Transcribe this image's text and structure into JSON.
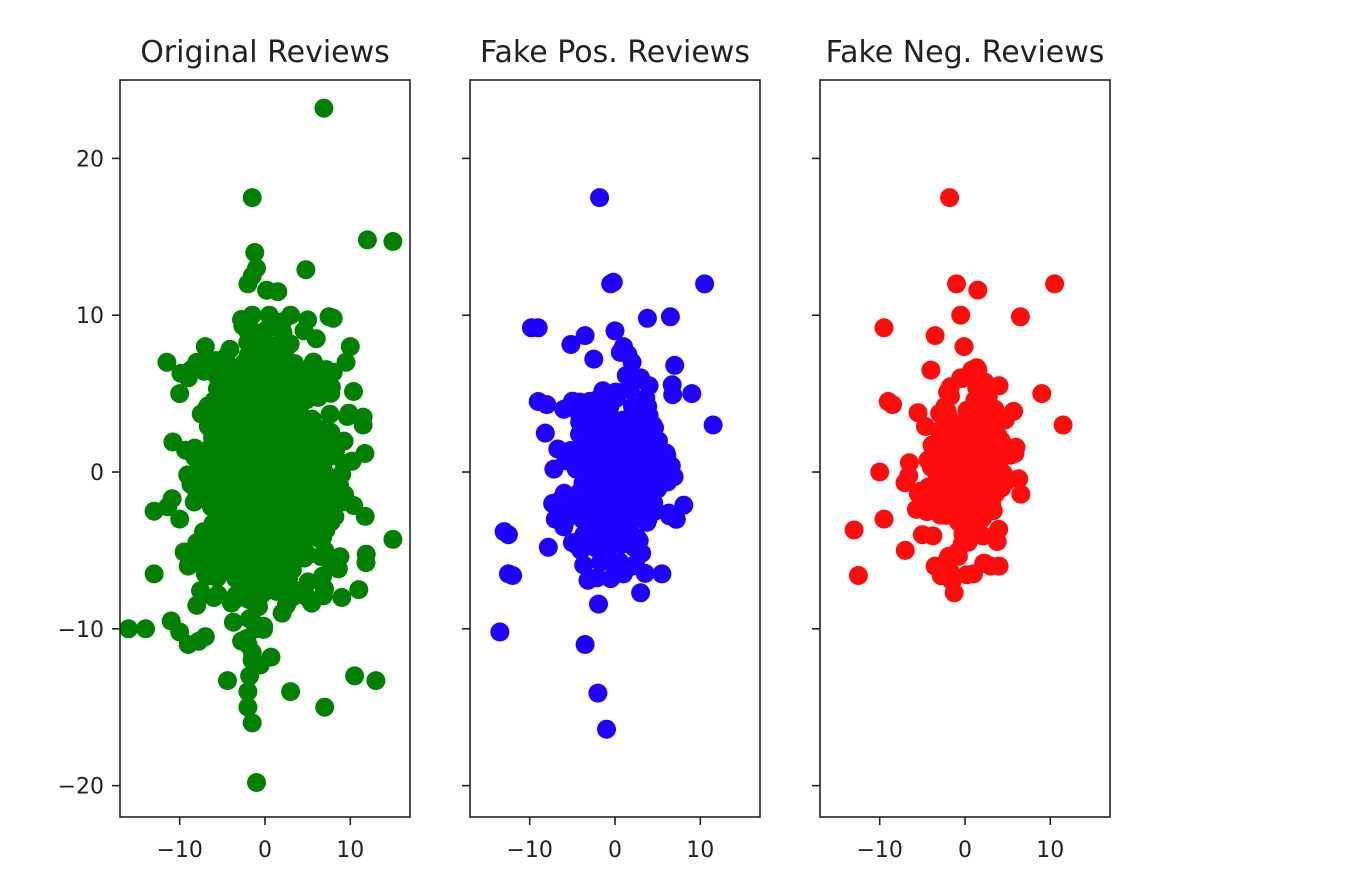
{
  "chart_data": [
    {
      "type": "scatter",
      "title": "Original Reviews",
      "color": "#008000",
      "xlim": [
        -17,
        17
      ],
      "ylim": [
        -22,
        25
      ],
      "xticks": [
        -10,
        0,
        10
      ],
      "xtick_labels": [
        "−10",
        "0",
        "10"
      ],
      "yticks": [
        -20,
        -10,
        0,
        10,
        20
      ],
      "ytick_labels": [
        "−20",
        "−10",
        "0",
        "10",
        "20"
      ],
      "show_y_tick_labels": true,
      "grid": false,
      "x": [
        6.9,
        -1.5,
        -1.2,
        12,
        15,
        -1,
        -1.5,
        1.5,
        -2,
        4.8,
        -1,
        3,
        -4.4,
        7,
        10.5,
        -9,
        -7.8,
        -1.5,
        -1.5,
        0.7,
        -7,
        -10,
        -11,
        -8,
        -6,
        -13,
        -16,
        -14,
        -13,
        -9,
        -10,
        -8,
        -7,
        -6,
        -5,
        -3,
        -10,
        -9,
        -8,
        -7,
        -11.5,
        15,
        13,
        11,
        9,
        -2,
        -1.5,
        -2,
        -1.8,
        -1.5,
        -2,
        -1,
        -1.5,
        2,
        2.5,
        4.5,
        5,
        -1.5,
        0.5,
        3,
        5,
        7.5,
        8,
        10,
        11.5,
        11.5,
        9.5,
        6,
        -2.5,
        -1,
        -0.5,
        2,
        3.5,
        -4.5,
        -3,
        4,
        0.5,
        -3.5,
        -5,
        -1,
        -1,
        -1,
        -2,
        -2,
        -1,
        -1,
        -2,
        -2,
        -1.5,
        -0.5,
        -2,
        3,
        7
      ],
      "y": [
        23.2,
        17.5,
        14,
        14.8,
        14.7,
        13,
        12.5,
        11.5,
        12,
        12.9,
        -19.8,
        -14,
        -13.3,
        -15,
        -13,
        -11,
        -10.8,
        -11.5,
        -12,
        -11.8,
        -10.5,
        -10.2,
        -9.5,
        -8.5,
        -8,
        -6.5,
        -10,
        -10,
        -2.5,
        -6,
        -3,
        -4.5,
        -6.5,
        -2,
        -3,
        -7,
        5,
        6,
        7,
        8,
        7,
        -4.3,
        -13.3,
        -7.5,
        -8,
        -15,
        -16,
        -14,
        -13,
        -12,
        -11,
        -10,
        -9.5,
        -9,
        -8.5,
        -7.5,
        -8,
        10,
        10,
        10,
        9.7,
        9.9,
        9.8,
        8,
        3.5,
        3,
        7,
        8.5,
        -4,
        -3,
        -2,
        -1,
        1,
        1,
        3,
        3,
        5,
        2,
        0,
        4,
        6,
        -6,
        -5,
        -2,
        2,
        0,
        -1,
        1,
        -3,
        3,
        5,
        -5,
        -5
      ],
      "cloud": {
        "cx": 0,
        "cy": 0,
        "sx": 3.8,
        "sy": 3.8,
        "n": 1100,
        "seed": 7
      }
    },
    {
      "type": "scatter",
      "title": "Fake Pos. Reviews",
      "color": "#1f00ff",
      "xlim": [
        -17,
        17
      ],
      "ylim": [
        -22,
        25
      ],
      "xticks": [
        -10,
        0,
        10
      ],
      "xtick_labels": [
        "−10",
        "0",
        "10"
      ],
      "yticks": [
        -20,
        -10,
        0,
        10,
        20
      ],
      "ytick_labels": [
        "−20",
        "−10",
        "0",
        "10",
        "20"
      ],
      "show_y_tick_labels": false,
      "grid": false,
      "x": [
        -1.8,
        -0.5,
        -0.2,
        10.5,
        6.5,
        3.8,
        -9.8,
        -9,
        -3.5,
        0,
        1,
        1.5,
        2,
        3,
        4,
        7,
        9,
        11.5,
        6,
        4,
        -9,
        -8,
        -6,
        -3,
        -2,
        -13,
        -12.5,
        -12,
        -12.5,
        -13.5,
        -3.5,
        -2,
        -1,
        3,
        5.5,
        2,
        1,
        -0.5,
        0.5,
        -1.5,
        -4,
        -5,
        -6,
        -7
      ],
      "y": [
        17.5,
        12,
        12.1,
        12,
        9.9,
        9.8,
        9.2,
        9.2,
        8.7,
        9,
        8,
        7.5,
        7,
        6,
        5.5,
        6.8,
        5,
        3,
        1.2,
        3.6,
        4.5,
        4.3,
        4,
        4.5,
        3.7,
        -3.8,
        -4,
        -6.6,
        -6.5,
        -10.2,
        -11,
        -14.1,
        -16.4,
        -7.7,
        -6.5,
        -6,
        -6.5,
        -6.8,
        -5.8,
        -5.5,
        -5,
        -4.5,
        -3.5,
        -3
      ],
      "cloud": {
        "cx": 0,
        "cy": 0,
        "sx": 2.9,
        "sy": 2.8,
        "n": 380,
        "seed": 11
      }
    },
    {
      "type": "scatter",
      "title": "Fake Neg. Reviews",
      "color": "#ff0d0d",
      "xlim": [
        -17,
        17
      ],
      "ylim": [
        -22,
        25
      ],
      "xticks": [
        -10,
        0,
        10
      ],
      "xtick_labels": [
        "−10",
        "0",
        "10"
      ],
      "yticks": [
        -20,
        -10,
        0,
        10,
        20
      ],
      "ytick_labels": [
        "−20",
        "−10",
        "0",
        "10",
        "20"
      ],
      "show_y_tick_labels": false,
      "grid": false,
      "x": [
        -1.8,
        -1,
        1.5,
        10.5,
        6.5,
        -0.5,
        -3.5,
        -9.5,
        1.5,
        4,
        -0.5,
        9,
        11.5,
        -9,
        -8.5,
        -10,
        -9.5,
        -13,
        -12.5,
        -7,
        -3.5,
        -2,
        1,
        3,
        4,
        -4,
        -5,
        3.5
      ],
      "y": [
        17.5,
        12,
        11.6,
        12,
        9.9,
        10,
        8.7,
        9.2,
        6.5,
        5.5,
        6,
        5,
        3,
        4.5,
        4.3,
        0,
        -3,
        -3.7,
        -6.6,
        -5,
        -6,
        -5.5,
        -6.5,
        -6,
        -6,
        6.5,
        -4,
        4
      ],
      "cloud": {
        "cx": 0,
        "cy": 0,
        "sx": 2.6,
        "sy": 2.6,
        "n": 230,
        "seed": 23
      }
    }
  ]
}
